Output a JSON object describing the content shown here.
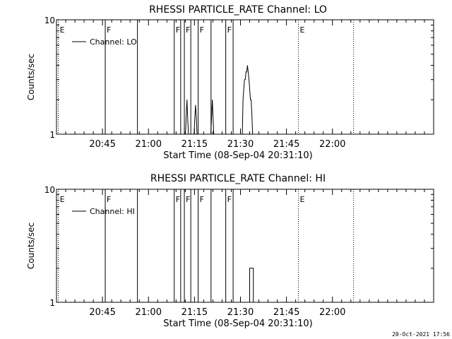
{
  "footer": {
    "timestamp": "20-Oct-2021 17:56"
  },
  "chart_data": [
    {
      "type": "line",
      "title": "RHESSI PARTICLE_RATE Channel: LO",
      "xlabel": "Start Time (08-Sep-04 20:31:10)",
      "ylabel": "Counts/sec",
      "y_scale": "log",
      "ylim": [
        1,
        10
      ],
      "y_ticks": [
        {
          "value": 1,
          "label": "1"
        },
        {
          "value": 10,
          "label": "10"
        }
      ],
      "xlim_minutes": [
        20.5,
        22.55
      ],
      "x_ticks": [
        {
          "value": 20.75,
          "label": "20:45"
        },
        {
          "value": 21.0,
          "label": "21:00"
        },
        {
          "value": 21.25,
          "label": "21:15"
        },
        {
          "value": 21.5,
          "label": "21:30"
        },
        {
          "value": 21.75,
          "label": "21:45"
        },
        {
          "value": 22.0,
          "label": "22:00"
        }
      ],
      "legend": {
        "label": "Channel: LO",
        "placement": "top-left"
      },
      "markers": [
        {
          "label": "E",
          "time": 20.51,
          "style": "dotted"
        },
        {
          "label": "F",
          "time": 20.765,
          "style": "dotted"
        },
        {
          "label": "",
          "time": 20.765,
          "style": "solid"
        },
        {
          "label": "",
          "time": 20.94,
          "style": "solid"
        },
        {
          "label": "F",
          "time": 21.14,
          "style": "solid"
        },
        {
          "label": "",
          "time": 21.175,
          "style": "solid"
        },
        {
          "label": "F",
          "time": 21.195,
          "style": "solid"
        },
        {
          "label": "",
          "time": 21.23,
          "style": "solid"
        },
        {
          "label": "F",
          "time": 21.27,
          "style": "solid"
        },
        {
          "label": "",
          "time": 21.34,
          "style": "solid"
        },
        {
          "label": "F",
          "time": 21.42,
          "style": "solid"
        },
        {
          "label": "",
          "time": 21.46,
          "style": "solid"
        },
        {
          "label": "E",
          "time": 21.815,
          "style": "dotted"
        },
        {
          "label": "",
          "time": 22.115,
          "style": "dotted"
        }
      ],
      "series": [
        {
          "x": [
            21.201,
            21.205,
            21.209,
            21.213,
            21.217,
            21.221,
            21.225,
            21.248,
            21.252,
            21.256,
            21.26,
            21.264,
            21.339,
            21.343,
            21.347,
            21.351,
            21.355,
            21.51,
            21.514,
            21.518,
            21.522,
            21.526,
            21.53,
            21.534,
            21.538,
            21.542,
            21.546,
            21.55,
            21.554,
            21.558,
            21.562,
            21.566,
            21.57,
            21.574
          ],
          "y": [
            1,
            1.4,
            2,
            1.4,
            1,
            1,
            1,
            1,
            1.4,
            1.8,
            1.4,
            1,
            1,
            1.4,
            2,
            1.4,
            1,
            1,
            2,
            2.5,
            3,
            3,
            3.5,
            3.5,
            4,
            3.5,
            3,
            2.5,
            2,
            2,
            1.5,
            1,
            1,
            1
          ]
        }
      ]
    },
    {
      "type": "line",
      "title": "RHESSI PARTICLE_RATE Channel: HI",
      "xlabel": "Start Time (08-Sep-04 20:31:10)",
      "ylabel": "Counts/sec",
      "y_scale": "log",
      "ylim": [
        1,
        10
      ],
      "y_ticks": [
        {
          "value": 1,
          "label": "1"
        },
        {
          "value": 10,
          "label": "10"
        }
      ],
      "xlim_minutes": [
        20.5,
        22.55
      ],
      "x_ticks": [
        {
          "value": 20.75,
          "label": "20:45"
        },
        {
          "value": 21.0,
          "label": "21:00"
        },
        {
          "value": 21.25,
          "label": "21:15"
        },
        {
          "value": 21.5,
          "label": "21:30"
        },
        {
          "value": 21.75,
          "label": "21:45"
        },
        {
          "value": 22.0,
          "label": "22:00"
        }
      ],
      "legend": {
        "label": "Channel: HI",
        "placement": "top-left"
      },
      "markers": [
        {
          "label": "E",
          "time": 20.51,
          "style": "dotted"
        },
        {
          "label": "F",
          "time": 20.765,
          "style": "dotted"
        },
        {
          "label": "",
          "time": 20.765,
          "style": "solid"
        },
        {
          "label": "",
          "time": 20.94,
          "style": "solid"
        },
        {
          "label": "F",
          "time": 21.14,
          "style": "solid"
        },
        {
          "label": "",
          "time": 21.175,
          "style": "solid"
        },
        {
          "label": "F",
          "time": 21.195,
          "style": "solid"
        },
        {
          "label": "",
          "time": 21.23,
          "style": "solid"
        },
        {
          "label": "F",
          "time": 21.27,
          "style": "solid"
        },
        {
          "label": "",
          "time": 21.34,
          "style": "solid"
        },
        {
          "label": "F",
          "time": 21.42,
          "style": "solid"
        },
        {
          "label": "",
          "time": 21.46,
          "style": "solid"
        },
        {
          "label": "E",
          "time": 21.815,
          "style": "dotted"
        },
        {
          "label": "",
          "time": 22.115,
          "style": "dotted"
        }
      ],
      "series": [
        {
          "x": [
            21.54,
            21.55,
            21.55,
            21.57,
            21.57
          ],
          "y": [
            1,
            1,
            2,
            2,
            1
          ]
        }
      ]
    }
  ]
}
